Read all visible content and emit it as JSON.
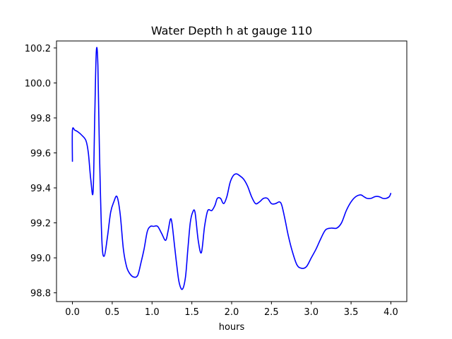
{
  "chart_data": {
    "type": "line",
    "title": "Water Depth h at gauge 110",
    "xlabel": "hours",
    "ylabel": "",
    "xlim": [
      -0.2,
      4.2
    ],
    "ylim": [
      98.75,
      100.24
    ],
    "xticks": [
      0.0,
      0.5,
      1.0,
      1.5,
      2.0,
      2.5,
      3.0,
      3.5,
      4.0
    ],
    "xtick_labels": [
      "0.0",
      "0.5",
      "1.0",
      "1.5",
      "2.0",
      "2.5",
      "3.0",
      "3.5",
      "4.0"
    ],
    "yticks": [
      98.8,
      99.0,
      99.2,
      99.4,
      99.6,
      99.8,
      100.0,
      100.2
    ],
    "ytick_labels": [
      "98.8",
      "99.0",
      "99.2",
      "99.4",
      "99.6",
      "99.8",
      "100.0",
      "100.2"
    ],
    "grid": false,
    "color": "#0000ff",
    "series": [
      {
        "x": [
          0.0,
          0.0,
          0.03,
          0.07,
          0.12,
          0.17,
          0.2,
          0.23,
          0.26,
          0.28,
          0.3,
          0.32,
          0.34,
          0.37,
          0.4,
          0.44,
          0.48,
          0.52,
          0.56,
          0.6,
          0.64,
          0.68,
          0.72,
          0.77,
          0.82,
          0.86,
          0.9,
          0.94,
          0.98,
          1.02,
          1.07,
          1.12,
          1.17,
          1.2,
          1.23,
          1.25,
          1.28,
          1.31,
          1.34,
          1.38,
          1.42,
          1.45,
          1.48,
          1.51,
          1.54,
          1.58,
          1.62,
          1.66,
          1.7,
          1.75,
          1.79,
          1.82,
          1.86,
          1.9,
          1.94,
          1.98,
          2.02,
          2.06,
          2.1,
          2.15,
          2.2,
          2.25,
          2.3,
          2.35,
          2.4,
          2.45,
          2.5,
          2.55,
          2.6,
          2.63,
          2.67,
          2.71,
          2.76,
          2.82,
          2.88,
          2.94,
          3.0,
          3.06,
          3.12,
          3.18,
          3.25,
          3.32,
          3.38,
          3.44,
          3.5,
          3.56,
          3.62,
          3.66,
          3.7,
          3.75,
          3.8,
          3.85,
          3.9,
          3.94,
          3.98,
          4.0
        ],
        "y": [
          99.55,
          99.73,
          99.73,
          99.72,
          99.7,
          99.67,
          99.6,
          99.45,
          99.38,
          99.8,
          100.18,
          100.1,
          99.6,
          99.1,
          99.01,
          99.12,
          99.26,
          99.32,
          99.35,
          99.25,
          99.05,
          98.95,
          98.91,
          98.89,
          98.9,
          98.97,
          99.05,
          99.15,
          99.18,
          99.18,
          99.18,
          99.14,
          99.1,
          99.15,
          99.22,
          99.2,
          99.08,
          98.96,
          98.86,
          98.82,
          98.89,
          99.05,
          99.2,
          99.26,
          99.26,
          99.1,
          99.03,
          99.18,
          99.27,
          99.27,
          99.3,
          99.34,
          99.34,
          99.31,
          99.35,
          99.43,
          99.47,
          99.48,
          99.47,
          99.45,
          99.41,
          99.35,
          99.31,
          99.32,
          99.34,
          99.34,
          99.31,
          99.31,
          99.32,
          99.3,
          99.22,
          99.13,
          99.04,
          98.96,
          98.94,
          98.95,
          99.0,
          99.05,
          99.11,
          99.16,
          99.17,
          99.17,
          99.2,
          99.27,
          99.32,
          99.35,
          99.36,
          99.35,
          99.34,
          99.34,
          99.35,
          99.35,
          99.34,
          99.34,
          99.35,
          99.37
        ]
      }
    ]
  }
}
